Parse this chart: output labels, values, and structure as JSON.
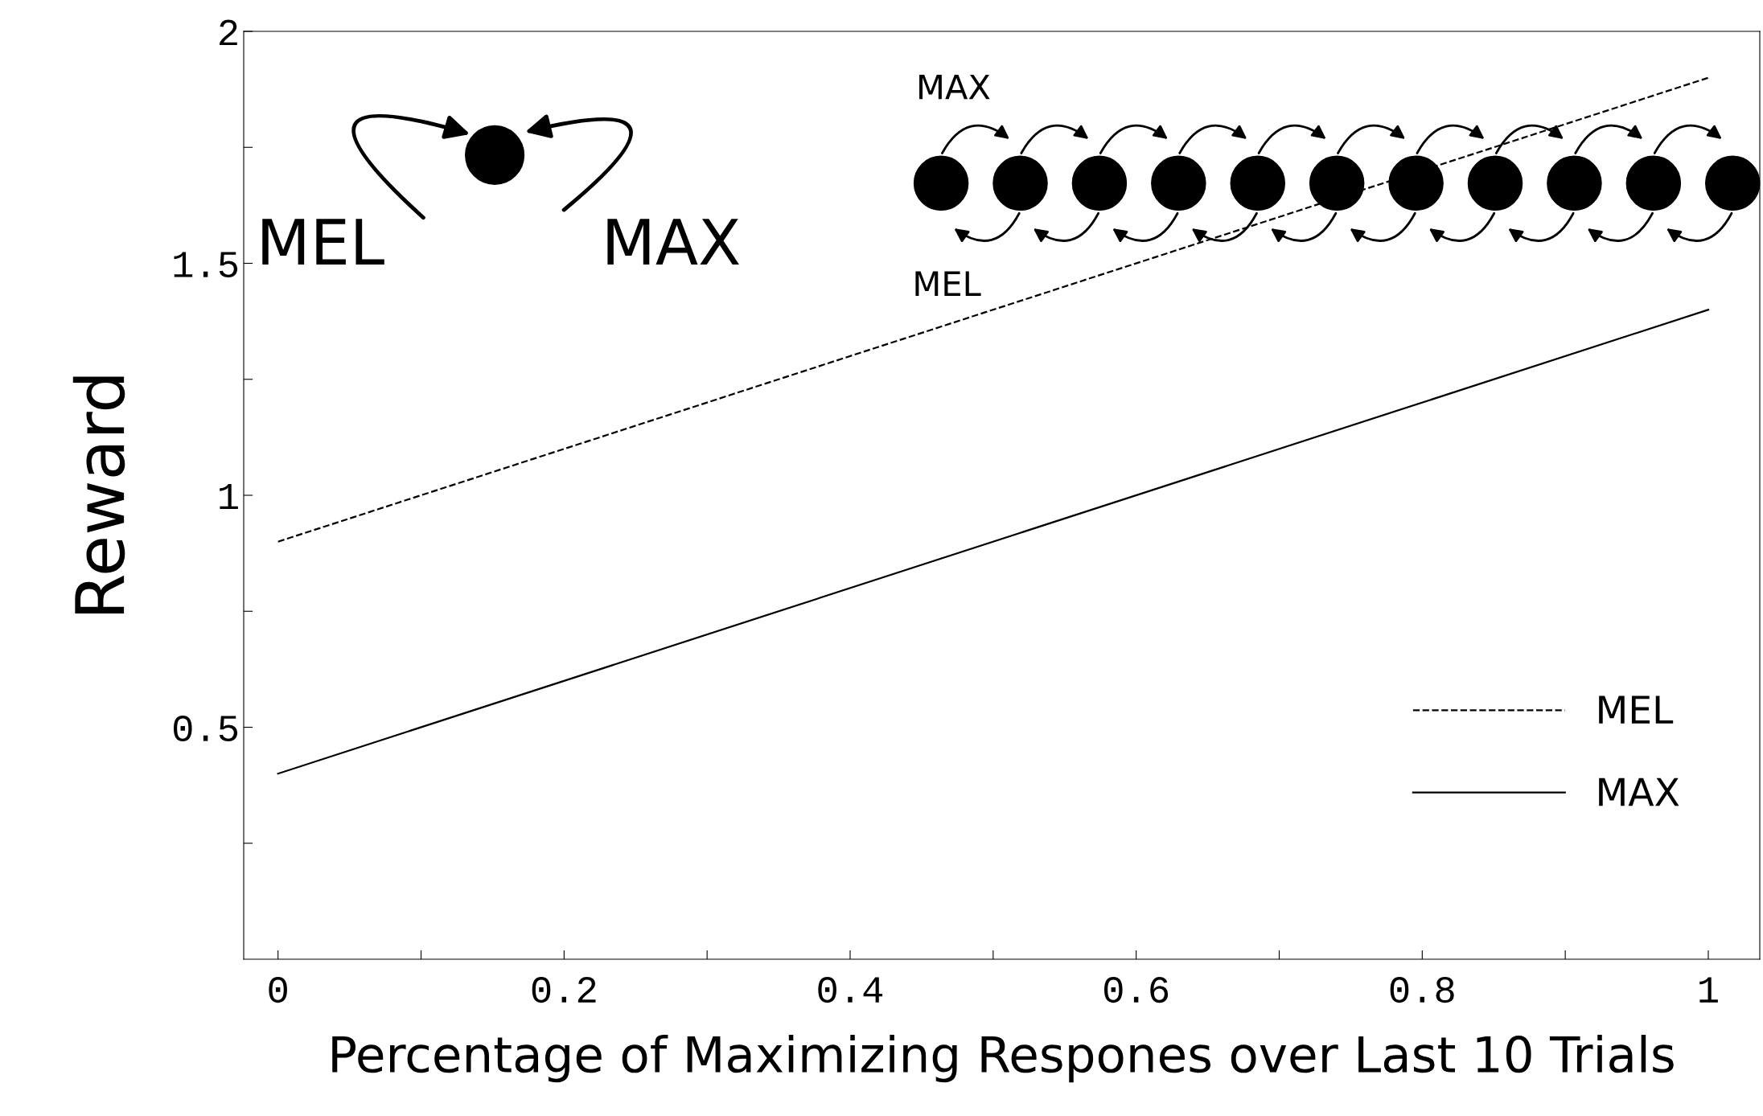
{
  "chart_data": {
    "type": "line",
    "xlabel": "Percentage of Maximizing Respones over Last 10 Trials",
    "ylabel": "Reward",
    "x": [
      0,
      1
    ],
    "series": [
      {
        "name": "MEL",
        "color": "#000000",
        "values": [
          0.9,
          1.9
        ],
        "line_style": "dashed"
      },
      {
        "name": "MAX",
        "color": "#000000",
        "values": [
          0.4,
          1.4
        ],
        "line_style": "solid"
      }
    ],
    "xlim": [
      -0.024,
      1.036
    ],
    "ylim": [
      0,
      2
    ],
    "xticks": [
      0,
      {
        "value": 0.1,
        "label": null
      },
      0.2,
      {
        "value": 0.3,
        "label": null
      },
      0.4,
      {
        "value": 0.5,
        "label": null
      },
      0.6,
      {
        "value": 0.7,
        "label": null
      },
      0.8,
      {
        "value": 0.9,
        "label": null
      },
      1
    ],
    "yticks": [
      {
        "value": 0.25,
        "label": null
      },
      0.5,
      {
        "value": 0.75,
        "label": null
      },
      1,
      {
        "value": 1.25,
        "label": null
      },
      1.5,
      {
        "value": 1.75,
        "label": null
      },
      2
    ],
    "legend": "bottom right",
    "grid": false,
    "marker": "none",
    "annotations": [
      "MEL",
      "MAX",
      "MAX",
      "MEL"
    ]
  }
}
